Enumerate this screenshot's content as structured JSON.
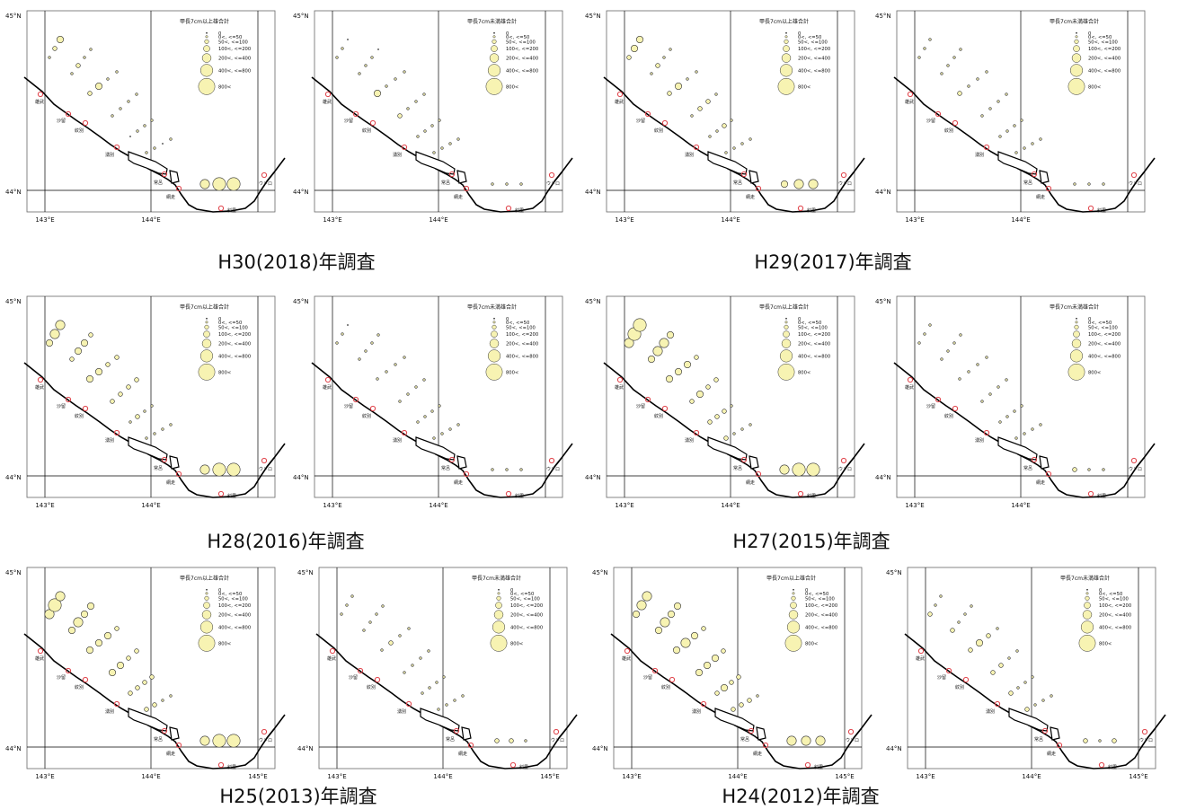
{
  "colors": {
    "bubble_fill": "#f7f3b2",
    "bubble_stroke": "#333333",
    "coast": "#000000",
    "port": "#e0434a",
    "grid": "#000000"
  },
  "axis_labels": {
    "lat_north": "45°N",
    "lat_south": "44°N",
    "lon_labels": [
      "143°E",
      "144°E",
      "145°E"
    ]
  },
  "legend": {
    "title_large": "甲長7cm以上雄合計",
    "title_small": "甲長7cm未満雄合計",
    "classes": [
      "0",
      "0<, <=50",
      "50<, <=100",
      "100<, <=200",
      "200<, <=400",
      "400<, <=800",
      "800<"
    ]
  },
  "ports": [
    "雄武",
    "沙留",
    "紋別",
    "湧別",
    "常呂",
    "網走",
    "斜里",
    "ウトロ"
  ],
  "captions": {
    "H30": "H30(2018)年調査",
    "H29": "H29(2017)年調査",
    "H28": "H28(2016)年調査",
    "H27": "H27(2015)年調査",
    "H25": "H25(2013)年調査",
    "H24": "H24(2012)年調査"
  },
  "surveys": [
    {
      "key": "H30",
      "large": [
        [
          1,
          2,
          3
        ],
        [
          1,
          2,
          1,
          1
        ],
        [
          2,
          3,
          1,
          1
        ],
        [
          1,
          1,
          1,
          1
        ],
        [
          0,
          1,
          1,
          1
        ],
        [
          1,
          1,
          0,
          1
        ],
        [
          4,
          5,
          5
        ]
      ],
      "small": [
        [
          1,
          1,
          0
        ],
        [
          1,
          1,
          1,
          0
        ],
        [
          3,
          1,
          1,
          1
        ],
        [
          2,
          1,
          1,
          1
        ],
        [
          1,
          1,
          1,
          1
        ],
        [
          1,
          1,
          1,
          1
        ],
        [
          1,
          1,
          1
        ]
      ]
    },
    {
      "key": "H29",
      "large": [
        [
          2,
          3,
          3
        ],
        [
          1,
          2,
          1,
          1
        ],
        [
          2,
          3,
          1,
          1
        ],
        [
          1,
          2,
          2,
          1
        ],
        [
          1,
          1,
          2,
          1
        ],
        [
          1,
          1,
          1,
          1
        ],
        [
          3,
          4,
          4
        ]
      ],
      "small": [
        [
          1,
          1,
          1
        ],
        [
          1,
          1,
          1,
          1
        ],
        [
          2,
          1,
          1,
          1
        ],
        [
          1,
          1,
          1,
          1
        ],
        [
          1,
          1,
          1,
          1
        ],
        [
          1,
          1,
          1,
          1
        ],
        [
          1,
          1,
          1
        ]
      ]
    },
    {
      "key": "H28",
      "large": [
        [
          3,
          4,
          4
        ],
        [
          2,
          3,
          3,
          2
        ],
        [
          3,
          3,
          2,
          2
        ],
        [
          2,
          2,
          2,
          2
        ],
        [
          1,
          2,
          1,
          1
        ],
        [
          1,
          1,
          1,
          1
        ],
        [
          4,
          5,
          5
        ]
      ],
      "small": [
        [
          1,
          1,
          0
        ],
        [
          1,
          1,
          1,
          1
        ],
        [
          1,
          1,
          1,
          1
        ],
        [
          1,
          1,
          1,
          1
        ],
        [
          1,
          1,
          1,
          1
        ],
        [
          1,
          1,
          1,
          1
        ],
        [
          1,
          1,
          1
        ]
      ]
    },
    {
      "key": "H27",
      "large": [
        [
          4,
          5,
          5
        ],
        [
          3,
          4,
          4,
          3
        ],
        [
          3,
          3,
          3,
          2
        ],
        [
          2,
          3,
          2,
          2
        ],
        [
          2,
          2,
          2,
          1
        ],
        [
          2,
          1,
          1,
          1
        ],
        [
          4,
          5,
          5
        ]
      ],
      "small": [
        [
          1,
          1,
          1
        ],
        [
          1,
          1,
          1,
          1
        ],
        [
          1,
          1,
          1,
          1
        ],
        [
          1,
          1,
          1,
          1
        ],
        [
          1,
          1,
          1,
          1
        ],
        [
          1,
          1,
          1,
          1
        ],
        [
          2,
          1,
          1
        ]
      ]
    },
    {
      "key": "H25",
      "large": [
        [
          4,
          5,
          4
        ],
        [
          3,
          4,
          3,
          3
        ],
        [
          3,
          3,
          3,
          2
        ],
        [
          3,
          3,
          2,
          2
        ],
        [
          2,
          2,
          2,
          2
        ],
        [
          2,
          2,
          1,
          1
        ],
        [
          4,
          5,
          5
        ]
      ],
      "small": [
        [
          1,
          1,
          1
        ],
        [
          1,
          1,
          1,
          1
        ],
        [
          1,
          2,
          1,
          1
        ],
        [
          1,
          1,
          1,
          1
        ],
        [
          1,
          1,
          1,
          1
        ],
        [
          1,
          1,
          1,
          1
        ],
        [
          2,
          2,
          1
        ]
      ]
    },
    {
      "key": "H24",
      "large": [
        [
          3,
          4,
          4
        ],
        [
          3,
          4,
          3,
          3
        ],
        [
          3,
          4,
          3,
          2
        ],
        [
          3,
          3,
          3,
          2
        ],
        [
          2,
          3,
          2,
          2
        ],
        [
          2,
          2,
          2,
          1
        ],
        [
          4,
          4,
          4
        ]
      ],
      "small": [
        [
          2,
          1,
          1
        ],
        [
          2,
          1,
          1,
          1
        ],
        [
          2,
          3,
          2,
          1
        ],
        [
          2,
          2,
          1,
          1
        ],
        [
          2,
          1,
          1,
          1
        ],
        [
          2,
          1,
          1,
          1
        ],
        [
          2,
          1,
          2
        ]
      ]
    }
  ]
}
